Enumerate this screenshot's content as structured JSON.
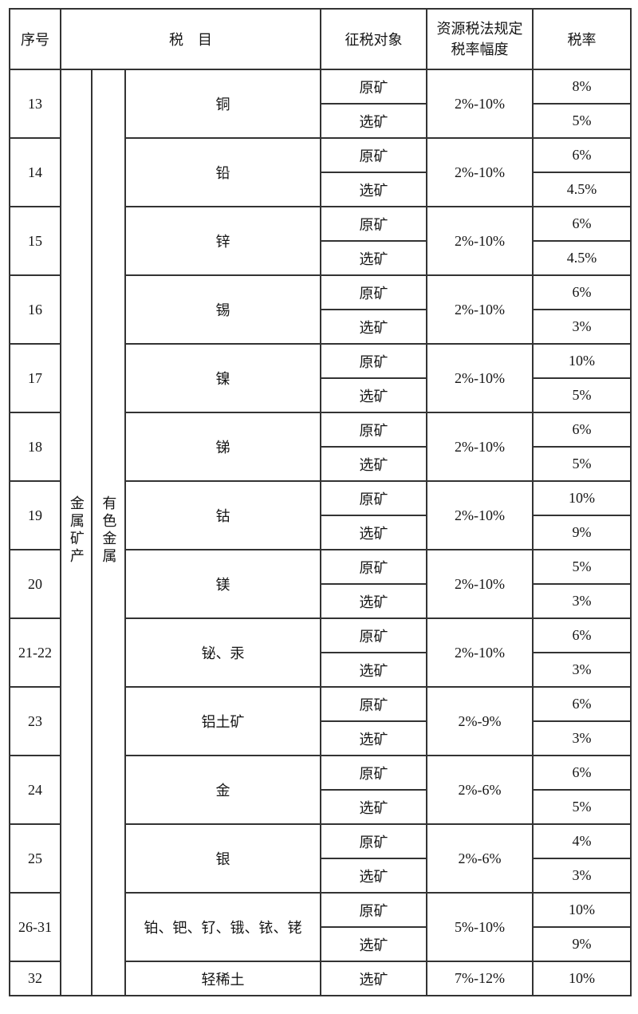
{
  "colors": {
    "background": "#ffffff",
    "border": "#333333",
    "text": "#151515"
  },
  "table": {
    "headers": {
      "no": "序号",
      "item": "税　目",
      "object": "征税对象",
      "range": "资源税法规定\n税率幅度",
      "rate": "税率"
    },
    "category": "金属矿产",
    "subcategory": "有色金属",
    "rows": [
      {
        "no": "13",
        "item": "铜",
        "objects": [
          "原矿",
          "选矿"
        ],
        "range": "2%-10%",
        "rates": [
          "8%",
          "5%"
        ]
      },
      {
        "no": "14",
        "item": "铅",
        "objects": [
          "原矿",
          "选矿"
        ],
        "range": "2%-10%",
        "rates": [
          "6%",
          "4.5%"
        ]
      },
      {
        "no": "15",
        "item": "锌",
        "objects": [
          "原矿",
          "选矿"
        ],
        "range": "2%-10%",
        "rates": [
          "6%",
          "4.5%"
        ]
      },
      {
        "no": "16",
        "item": "锡",
        "objects": [
          "原矿",
          "选矿"
        ],
        "range": "2%-10%",
        "rates": [
          "6%",
          "3%"
        ]
      },
      {
        "no": "17",
        "item": "镍",
        "objects": [
          "原矿",
          "选矿"
        ],
        "range": "2%-10%",
        "rates": [
          "10%",
          "5%"
        ]
      },
      {
        "no": "18",
        "item": "锑",
        "objects": [
          "原矿",
          "选矿"
        ],
        "range": "2%-10%",
        "rates": [
          "6%",
          "5%"
        ]
      },
      {
        "no": "19",
        "item": "钴",
        "objects": [
          "原矿",
          "选矿"
        ],
        "range": "2%-10%",
        "rates": [
          "10%",
          "9%"
        ]
      },
      {
        "no": "20",
        "item": "镁",
        "objects": [
          "原矿",
          "选矿"
        ],
        "range": "2%-10%",
        "rates": [
          "5%",
          "3%"
        ]
      },
      {
        "no": "21-22",
        "item": "铋、汞",
        "objects": [
          "原矿",
          "选矿"
        ],
        "range": "2%-10%",
        "rates": [
          "6%",
          "3%"
        ]
      },
      {
        "no": "23",
        "item": "铝土矿",
        "objects": [
          "原矿",
          "选矿"
        ],
        "range": "2%-9%",
        "rates": [
          "6%",
          "3%"
        ]
      },
      {
        "no": "24",
        "item": "金",
        "objects": [
          "原矿",
          "选矿"
        ],
        "range": "2%-6%",
        "rates": [
          "6%",
          "5%"
        ]
      },
      {
        "no": "25",
        "item": "银",
        "objects": [
          "原矿",
          "选矿"
        ],
        "range": "2%-6%",
        "rates": [
          "4%",
          "3%"
        ]
      },
      {
        "no": "26-31",
        "item": "铂、钯、钌、锇、铱、铑",
        "objects": [
          "原矿",
          "选矿"
        ],
        "range": "5%-10%",
        "rates": [
          "10%",
          "9%"
        ]
      },
      {
        "no": "32",
        "item": "轻稀土",
        "objects": [
          "选矿"
        ],
        "range": "7%-12%",
        "rates": [
          "10%"
        ]
      }
    ]
  }
}
